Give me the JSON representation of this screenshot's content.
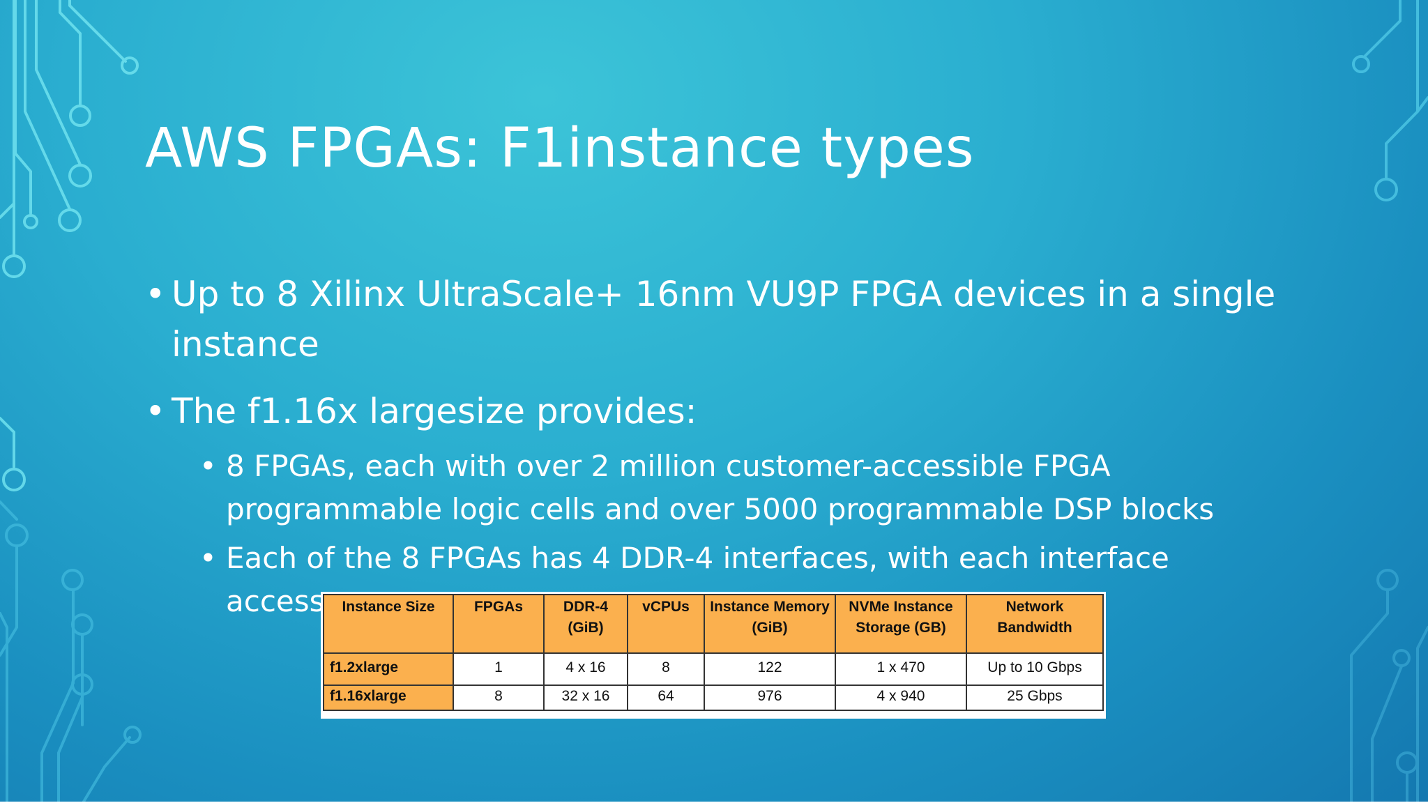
{
  "slide": {
    "title": "AWS FPGAs: F1instance types",
    "bullets": [
      {
        "text": "Up to 8 Xilinx UltraScale+ 16nm VU9P FPGA devices in a single instance"
      },
      {
        "text": "The f1.16x largesize provides:",
        "subbullets": [
          "8 FPGAs, each with over 2 million customer-accessible FPGA programmable logic cells and over 5000 programmable DSP blocks",
          "Each of the 8 FPGAs has 4 DDR-4 interfaces, with each interface access"
        ]
      }
    ],
    "bullet_glyph": "•"
  },
  "table": {
    "headers": [
      "Instance Size",
      "FPGAs",
      "DDR-4 (GiB)",
      "vCPUs",
      "Instance Memory (GiB)",
      "NVMe Instance Storage (GB)",
      "Network Bandwidth"
    ],
    "rows": [
      [
        "f1.2xlarge",
        "1",
        "4 x 16",
        "8",
        "122",
        "1 x 470",
        "Up to 10 Gbps"
      ],
      [
        "f1.16xlarge",
        "8",
        "32 x 16",
        "64",
        "976",
        "4 x 940",
        "25 Gbps"
      ]
    ]
  },
  "colors": {
    "background_light": "#3cc4d8",
    "background_dark": "#1478b0",
    "circuit_line": "#5ee0ee",
    "table_header": "#fbb04e"
  }
}
